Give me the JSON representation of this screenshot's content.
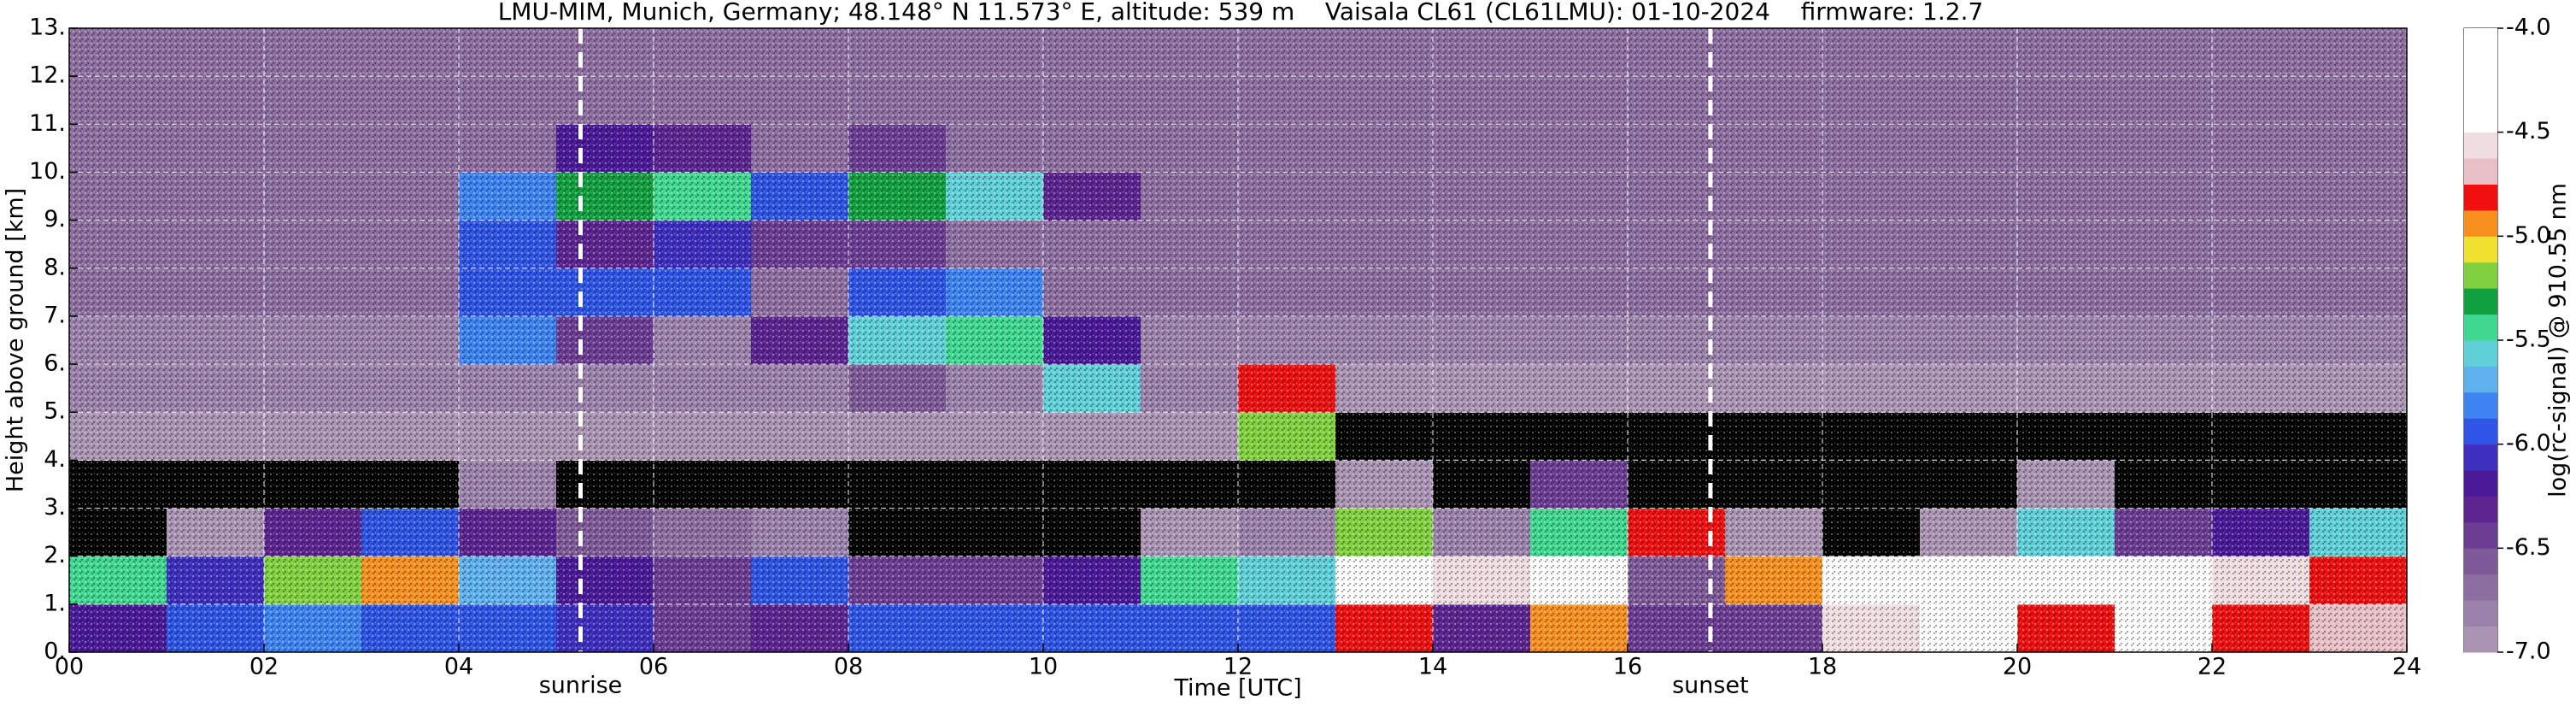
{
  "chart_data": {
    "type": "heatmap",
    "title": "LMU-MIM, Munich, Germany; 48.148° N 11.573° E, altitude: 539 m    Vaisala CL61 (CL61LMU): 01-10-2024    firmware: 1.2.7",
    "x_label": "Time [UTC]",
    "y_label": "Height above ground [km]",
    "colorbar_label": "log(rc-signal) @ 910.55 nm",
    "xlim": [
      0,
      24
    ],
    "xticks": [
      {
        "value": 0,
        "label": "00"
      },
      {
        "value": 2,
        "label": "02"
      },
      {
        "value": 4,
        "label": "04"
      },
      {
        "value": 6,
        "label": "06"
      },
      {
        "value": 8,
        "label": "08"
      },
      {
        "value": 10,
        "label": "10"
      },
      {
        "value": 12,
        "label": "12"
      },
      {
        "value": 14,
        "label": "14"
      },
      {
        "value": 16,
        "label": "16"
      },
      {
        "value": 18,
        "label": "18"
      },
      {
        "value": 20,
        "label": "20"
      },
      {
        "value": 22,
        "label": "22"
      },
      {
        "value": 24,
        "label": "24"
      }
    ],
    "ylim": [
      0,
      13
    ],
    "yticks": [
      {
        "value": 0,
        "label": "0."
      },
      {
        "value": 1,
        "label": "1."
      },
      {
        "value": 2,
        "label": "2."
      },
      {
        "value": 3,
        "label": "3."
      },
      {
        "value": 4,
        "label": "4."
      },
      {
        "value": 5,
        "label": "5."
      },
      {
        "value": 6,
        "label": "6."
      },
      {
        "value": 7,
        "label": "7."
      },
      {
        "value": 8,
        "label": "8."
      },
      {
        "value": 9,
        "label": "9."
      },
      {
        "value": 10,
        "label": "10."
      },
      {
        "value": 11,
        "label": "11."
      },
      {
        "value": 12,
        "label": "12."
      },
      {
        "value": 13,
        "label": "13."
      }
    ],
    "grid": true,
    "x_edges": [
      0,
      1,
      2,
      3,
      4,
      5,
      6,
      7,
      8,
      9,
      10,
      11,
      12,
      13,
      14,
      15,
      16,
      17,
      18,
      19,
      20,
      21,
      22,
      23,
      24
    ],
    "y_edges": [
      0,
      1,
      2,
      3,
      4,
      5,
      6,
      7,
      8,
      9,
      10,
      11,
      12,
      13
    ],
    "z": [
      [
        -6.2,
        -6.0,
        -5.8,
        -5.9,
        -6.0,
        -6.1,
        -6.4,
        -6.3,
        -5.9,
        -6.0,
        -6.0,
        -5.9,
        -6.0,
        -4.8,
        -6.3,
        -5.0,
        -6.4,
        -6.5,
        -4.6,
        -4.3,
        -4.8,
        -4.5,
        -4.8,
        -4.7
      ],
      [
        -5.5,
        -6.1,
        -5.2,
        -5.0,
        -5.7,
        -6.2,
        -6.5,
        -6.0,
        -6.4,
        -6.5,
        -6.2,
        -5.5,
        -5.6,
        -4.4,
        -4.6,
        -4.5,
        -6.6,
        -5.0,
        -4.4,
        -4.3,
        -4.3,
        -4.5,
        -4.6,
        -4.8
      ],
      [
        -7.1,
        -6.9,
        -6.3,
        -6.0,
        -6.3,
        -6.6,
        -6.7,
        -6.8,
        -7.1,
        -7.1,
        -7.1,
        -6.9,
        -6.8,
        -5.2,
        -6.8,
        -5.4,
        -4.8,
        -6.9,
        -7.1,
        -7.0,
        -5.6,
        -6.4,
        -6.2,
        -5.6
      ],
      [
        -7.05,
        -7.05,
        -7.05,
        -7.05,
        -6.8,
        -7.05,
        -7.05,
        -7.05,
        -7.05,
        -7.05,
        -7.05,
        -7.05,
        -7.05,
        -6.9,
        -7.1,
        -6.4,
        -7.1,
        -7.1,
        -7.1,
        -7.1,
        -6.9,
        -7.1,
        -7.1,
        -7.1
      ],
      [
        -6.9,
        -6.9,
        -6.9,
        -6.9,
        -6.9,
        -6.9,
        -6.9,
        -6.9,
        -6.9,
        -6.9,
        -6.9,
        -6.9,
        -5.2,
        -7.1,
        -7.1,
        -7.1,
        -7.1,
        -7.1,
        -7.1,
        -7.1,
        -7.1,
        -7.1,
        -7.1,
        -7.1
      ],
      [
        -6.8,
        -6.8,
        -6.8,
        -6.8,
        -6.8,
        -6.8,
        -6.8,
        -6.8,
        -6.6,
        -6.8,
        -5.6,
        -6.8,
        -4.8,
        -6.9,
        -6.9,
        -6.9,
        -6.9,
        -6.9,
        -6.9,
        -6.9,
        -6.9,
        -6.9,
        -6.9,
        -6.9
      ],
      [
        -6.8,
        -6.8,
        -6.8,
        -6.8,
        -5.8,
        -6.5,
        -6.8,
        -6.3,
        -5.6,
        -5.4,
        -6.2,
        -6.8,
        -6.8,
        -6.8,
        -6.8,
        -6.8,
        -6.8,
        -6.8,
        -6.8,
        -6.8,
        -6.8,
        -6.8,
        -6.8,
        -6.8
      ],
      [
        -6.7,
        -6.7,
        -6.7,
        -6.7,
        -5.9,
        -6.0,
        -5.9,
        -6.7,
        -6.0,
        -5.8,
        -6.7,
        -6.7,
        -6.7,
        -6.7,
        -6.7,
        -6.7,
        -6.7,
        -6.7,
        -6.7,
        -6.7,
        -6.7,
        -6.7,
        -6.7,
        -6.7
      ],
      [
        -6.7,
        -6.7,
        -6.7,
        -6.7,
        -6.0,
        -6.3,
        -6.1,
        -6.4,
        -6.5,
        -6.7,
        -6.7,
        -6.7,
        -6.7,
        -6.7,
        -6.7,
        -6.7,
        -6.7,
        -6.7,
        -6.7,
        -6.7,
        -6.7,
        -6.7,
        -6.7,
        -6.7
      ],
      [
        -6.7,
        -6.7,
        -6.7,
        -6.7,
        -5.8,
        -5.3,
        -5.5,
        -5.9,
        -5.3,
        -5.6,
        -6.3,
        -6.7,
        -6.7,
        -6.7,
        -6.7,
        -6.7,
        -6.7,
        -6.7,
        -6.7,
        -6.7,
        -6.7,
        -6.7,
        -6.7,
        -6.7
      ],
      [
        -6.7,
        -6.7,
        -6.7,
        -6.7,
        -6.7,
        -6.2,
        -6.3,
        -6.7,
        -6.4,
        -6.7,
        -6.7,
        -6.7,
        -6.7,
        -6.7,
        -6.7,
        -6.7,
        -6.7,
        -6.7,
        -6.7,
        -6.7,
        -6.7,
        -6.7,
        -6.7,
        -6.7
      ],
      [
        -6.7,
        -6.7,
        -6.7,
        -6.7,
        -6.7,
        -6.7,
        -6.7,
        -6.7,
        -6.7,
        -6.7,
        -6.7,
        -6.7,
        -6.7,
        -6.7,
        -6.7,
        -6.7,
        -6.7,
        -6.7,
        -6.7,
        -6.7,
        -6.7,
        -6.7,
        -6.7,
        -6.7
      ],
      [
        -6.7,
        -6.7,
        -6.7,
        -6.7,
        -6.7,
        -6.7,
        -6.7,
        -6.7,
        -6.7,
        -6.7,
        -6.7,
        -6.7,
        -6.7,
        -6.7,
        -6.7,
        -6.7,
        -6.7,
        -6.7,
        -6.7,
        -6.7,
        -6.7,
        -6.7,
        -6.7,
        -6.7
      ]
    ],
    "zlim": [
      -7,
      -4
    ],
    "zticks": [
      {
        "value": -7,
        "label": "-7.0"
      },
      -6.5,
      {
        "value": -6,
        "label": "-6.0"
      },
      -5.5,
      {
        "value": -5,
        "label": "-5.0"
      },
      -4.5,
      {
        "value": -4,
        "label": "-4.0"
      }
    ],
    "colors": [
      "#a995b3",
      "#9b82aa",
      "#8d6ea1",
      "#7e5a98",
      "#6b3e94",
      "#5c2590",
      "#4b1a98",
      "#3f2fbf",
      "#2e55e6",
      "#3d84f2",
      "#5fb0ee",
      "#5fd0d8",
      "#40d890",
      "#10a040",
      "#80d040",
      "#f0e030",
      "#f89020",
      "#f01010",
      "#e8c0c8",
      "#f0dde0",
      "#ffffff",
      "#ffffff",
      "#ffffff",
      "#ffffff"
    ],
    "color_under": "#000000",
    "annotations": [
      {
        "text": "sunrise",
        "x": 5.25
      },
      {
        "text": "sunset",
        "x": 16.85
      }
    ]
  }
}
